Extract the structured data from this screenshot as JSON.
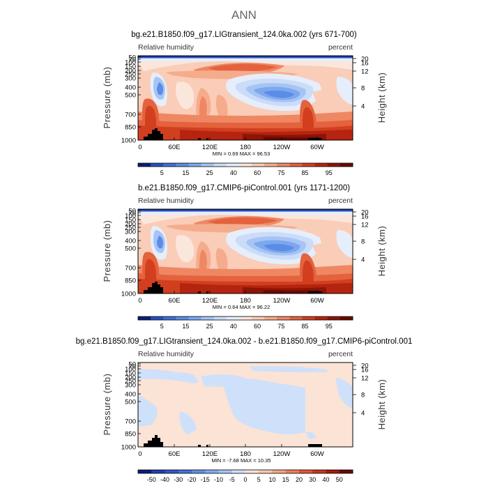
{
  "page_title": "ANN",
  "chart_data": [
    {
      "type": "heatmap",
      "title": "bg.e21.B1850.f09_g17.LIGtransient_124.0ka.002 (yrs 671-700)",
      "variable_label": "Relative humidity",
      "units_label": "percent",
      "ylabel": "Pressure (mb)",
      "y2label": "Height (km)",
      "x_ticks": [
        "0",
        "60E",
        "120E",
        "180",
        "120W",
        "60W"
      ],
      "y_ticks": [
        "50",
        "70",
        "100",
        "150",
        "200",
        "250",
        "300",
        "400",
        "500",
        "700",
        "850",
        "1000"
      ],
      "y2_ticks": [
        "20",
        "16",
        "12",
        "8",
        "4"
      ],
      "stats": "MIN =    0.69   MAX =   96.53",
      "colorbar_labels": [
        "5",
        "15",
        "25",
        "40",
        "60",
        "75",
        "85",
        "95"
      ],
      "colorbar_colors": [
        "#0a1e7a",
        "#2a4fc4",
        "#3f6fd8",
        "#5b8ce6",
        "#7da8ef",
        "#a6c4f4",
        "#cbdcf8",
        "#e6eefb",
        "#fbe6dc",
        "#f9cdb7",
        "#f5ac8d",
        "#ef8763",
        "#e4623e",
        "#d23f1f",
        "#b52410",
        "#8e1406",
        "#6a0a02"
      ]
    },
    {
      "type": "heatmap",
      "title": "b.e21.B1850.f09_g17.CMIP6-piControl.001 (yrs 1171-1200)",
      "variable_label": "Relative humidity",
      "units_label": "percent",
      "ylabel": "Pressure (mb)",
      "y2label": "Height (km)",
      "x_ticks": [
        "0",
        "60E",
        "120E",
        "180",
        "120W",
        "60W"
      ],
      "y_ticks": [
        "50",
        "70",
        "100",
        "150",
        "200",
        "250",
        "300",
        "400",
        "500",
        "700",
        "850",
        "1000"
      ],
      "y2_ticks": [
        "20",
        "16",
        "12",
        "8",
        "4"
      ],
      "stats": "MIN =    0.64   MAX =   96.22",
      "colorbar_labels": [
        "5",
        "15",
        "25",
        "40",
        "60",
        "75",
        "85",
        "95"
      ],
      "colorbar_colors": [
        "#0a1e7a",
        "#2a4fc4",
        "#3f6fd8",
        "#5b8ce6",
        "#7da8ef",
        "#a6c4f4",
        "#cbdcf8",
        "#e6eefb",
        "#fbe6dc",
        "#f9cdb7",
        "#f5ac8d",
        "#ef8763",
        "#e4623e",
        "#d23f1f",
        "#b52410",
        "#8e1406",
        "#6a0a02"
      ]
    },
    {
      "type": "heatmap",
      "title": "bg.e21.B1850.f09_g17.LIGtransient_124.0ka.002 - b.e21.B1850.f09_g17.CMIP6-piControl.001",
      "variable_label": "Relative humidity",
      "units_label": "percent",
      "ylabel": "Pressure (mb)",
      "y2label": "Height (km)",
      "x_ticks": [
        "0",
        "60E",
        "120E",
        "180",
        "120W",
        "60W"
      ],
      "y_ticks": [
        "50",
        "70",
        "100",
        "150",
        "200",
        "250",
        "300",
        "400",
        "500",
        "700",
        "850",
        "1000"
      ],
      "y2_ticks": [
        "20",
        "16",
        "12",
        "8",
        "4"
      ],
      "stats": "MIN =   -7.68   MAX =   10.35",
      "colorbar_labels": [
        "-50",
        "-40",
        "-30",
        "-20",
        "-15",
        "-10",
        "-5",
        "0",
        "5",
        "10",
        "15",
        "20",
        "30",
        "40",
        "50"
      ],
      "colorbar_colors": [
        "#0a1e7a",
        "#1f3fae",
        "#2f58c8",
        "#4472d8",
        "#6290e6",
        "#84aaef",
        "#a9c4f5",
        "#cfe0fa",
        "#fbe3d6",
        "#f9c8b0",
        "#f4a685",
        "#ec7f5a",
        "#de5734",
        "#c7361a",
        "#a31c0b",
        "#6a0a02"
      ]
    }
  ]
}
